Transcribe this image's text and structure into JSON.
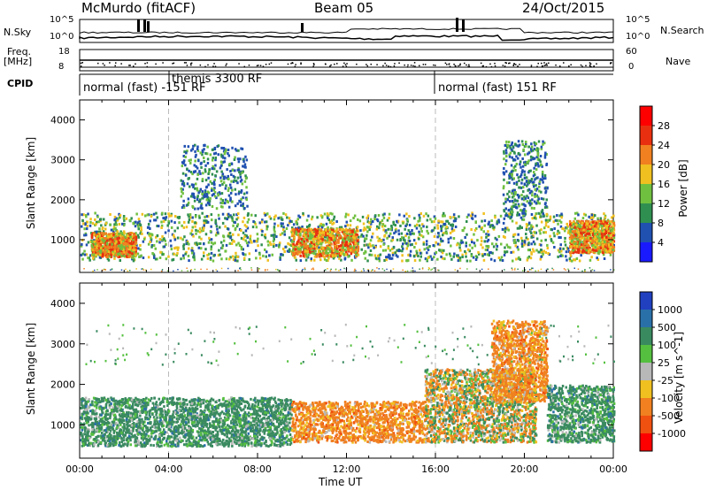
{
  "header": {
    "station": "McMurdo (fitACF)",
    "beam": "Beam 05",
    "date": "24/Oct/2015"
  },
  "top_panels": {
    "nsky_label": "N.Sky",
    "nsearch_label": "N.Search",
    "nsky_ticks": [
      "10^5",
      "10^0"
    ],
    "nsearch_ticks": [
      "10^5",
      "10^0"
    ],
    "freq_label_1": "Freq.",
    "freq_label_2": "[MHz]",
    "freq_ticks": [
      "18",
      "8"
    ],
    "nave_label": "Nave",
    "nave_ticks": [
      "60",
      "0"
    ],
    "cpid_label": "CPID",
    "cpid_segments": [
      {
        "label": "normal (fast) -151 RF",
        "start_hour": 0
      },
      {
        "label": "themis 3300 RF",
        "start_hour": 4
      },
      {
        "label": "normal (fast) 151 RF",
        "start_hour": 16
      }
    ]
  },
  "chart_data": [
    {
      "type": "heatmap",
      "title": "",
      "ylabel": "Slant Range [km]",
      "xlabel": "",
      "x_range_hours": [
        0,
        24
      ],
      "ylim": [
        180,
        4500
      ],
      "yticks": [
        "1000",
        "2000",
        "3000",
        "4000"
      ],
      "colorbar": {
        "label": "Power [dB]",
        "ticks": [
          "4",
          "8",
          "12",
          "16",
          "20",
          "24",
          "28"
        ],
        "range": [
          0,
          32
        ],
        "colors": [
          "#1a1aff",
          "#2050b0",
          "#2f8f50",
          "#70c040",
          "#f0c020",
          "#f08020",
          "#e83010",
          "#ff0000"
        ]
      },
      "scatter_regions": [
        {
          "hours": [
            0,
            24
          ],
          "range_km": [
            500,
            1700
          ],
          "level": "medium"
        },
        {
          "hours": [
            0.5,
            2.5
          ],
          "range_km": [
            600,
            1200
          ],
          "level": "high"
        },
        {
          "hours": [
            9.5,
            12.5
          ],
          "range_km": [
            600,
            1300
          ],
          "level": "high"
        },
        {
          "hours": [
            4.5,
            7.5
          ],
          "range_km": [
            1800,
            3400
          ],
          "level": "low"
        },
        {
          "hours": [
            19.0,
            21.0
          ],
          "range_km": [
            1600,
            3500
          ],
          "level": "low"
        },
        {
          "hours": [
            22.0,
            24.0
          ],
          "range_km": [
            700,
            1500
          ],
          "level": "high"
        }
      ]
    },
    {
      "type": "heatmap",
      "title": "",
      "ylabel": "Slant Range [km]",
      "xlabel": "Time UT",
      "x_range_hours": [
        0,
        24
      ],
      "xticks": [
        "00:00",
        "04:00",
        "08:00",
        "12:00",
        "16:00",
        "20:00",
        "00:00"
      ],
      "ylim": [
        180,
        4500
      ],
      "yticks": [
        "1000",
        "2000",
        "3000",
        "4000"
      ],
      "colorbar": {
        "label": "Velocity [m s^-1]",
        "ticks": [
          "1000",
          "500",
          "100",
          "25",
          "-25",
          "-100",
          "-500",
          "-1000"
        ],
        "colors": [
          "#2040c0",
          "#2a70a8",
          "#3a8a60",
          "#55c040",
          "#b8b8b8",
          "#f0c020",
          "#f08020",
          "#f05010",
          "#ff0000"
        ]
      },
      "scatter_regions": [
        {
          "hours": [
            0,
            9.5
          ],
          "range_km": [
            500,
            1700
          ],
          "class": "west"
        },
        {
          "hours": [
            9.5,
            15.5
          ],
          "range_km": [
            600,
            1600
          ],
          "class": "east"
        },
        {
          "hours": [
            15.5,
            20.5
          ],
          "range_km": [
            600,
            2400
          ],
          "class": "mixed"
        },
        {
          "hours": [
            18.5,
            21
          ],
          "range_km": [
            1600,
            3600
          ],
          "class": "east"
        },
        {
          "hours": [
            21.0,
            24
          ],
          "range_km": [
            600,
            2000
          ],
          "class": "west"
        }
      ]
    }
  ],
  "x_axis": {
    "label": "Time UT",
    "ticks": [
      "00:00",
      "04:00",
      "08:00",
      "12:00",
      "16:00",
      "20:00",
      "00:00"
    ]
  }
}
